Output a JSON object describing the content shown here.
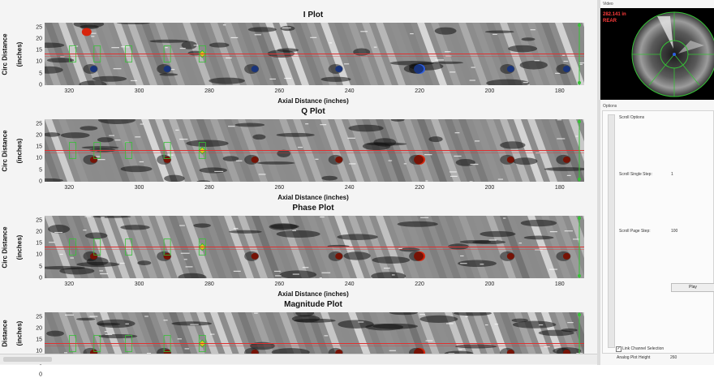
{
  "plots": [
    {
      "title": "I Plot",
      "y_label_line1": "Circ Distance",
      "y_label_line2": "(inches)",
      "x_label": "Axial Distance (inches)"
    },
    {
      "title": "Q Plot",
      "y_label_line1": "Circ Distance",
      "y_label_line2": "(inches)",
      "x_label": "Axial Distance (inches)"
    },
    {
      "title": "Phase Plot",
      "y_label_line1": "Circ Distance",
      "y_label_line2": "(inches)",
      "x_label": "Axial Distance (inches)"
    },
    {
      "title": "Magnitude Plot",
      "y_label_line1": "Distance",
      "y_label_line2": "(inches)",
      "x_label": ""
    }
  ],
  "y_ticks": [
    "25",
    "20",
    "15",
    "10",
    "5",
    "0"
  ],
  "x_ticks": [
    "320",
    "300",
    "280",
    "260",
    "240",
    "220",
    "200",
    "180"
  ],
  "x_tick_values": [
    320,
    300,
    280,
    260,
    240,
    220,
    200,
    180
  ],
  "x_range": [
    327,
    173
  ],
  "y_range": [
    0,
    27
  ],
  "cursor_y_value": 13.5,
  "video": {
    "caption": "Video",
    "position_text": "282.141 in",
    "direction_text": "REAR"
  },
  "options": {
    "caption": "Options",
    "scroll_options": "Scroll Options",
    "scroll_single_step_label": "Scroll Single Step:",
    "scroll_single_step_value": "1",
    "scroll_page_step_label": "Scroll Page Step:",
    "scroll_page_step_value": "100",
    "play_label": "Play",
    "link_channel_label": "Link Channel Selection",
    "link_channel_checked": true,
    "analog_plot_height_label": "Analog Plot Height",
    "analog_plot_height_value": "260"
  },
  "colors": {
    "cursor_line": "#e03030",
    "marker": "#36c236",
    "hot_spot": "#d8240c",
    "cold_spot": "#2f5fe0"
  }
}
